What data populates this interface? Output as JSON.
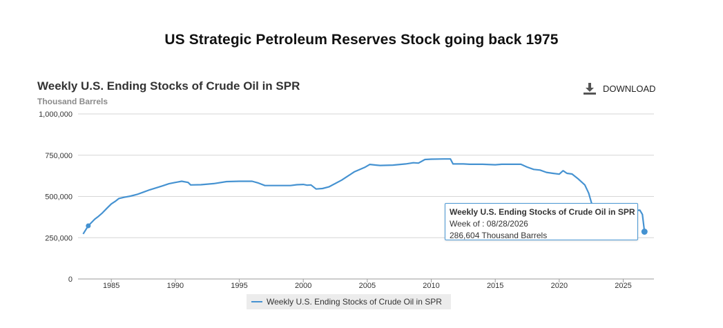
{
  "page": {
    "heading": "US Strategic Petroleum Reserves Stock going back 1975",
    "download_label": "DOWNLOAD"
  },
  "colors": {
    "series": "#4592d1",
    "grid": "#d6d6d6",
    "axis": "#999999",
    "tooltip_border": "#4a97d3"
  },
  "icons": {
    "download": "download-icon"
  },
  "tooltip": {
    "title": "Weekly U.S. Ending Stocks of Crude Oil in SPR",
    "week_line": "Week of : 08/28/2026",
    "value_line": "286,604 Thousand Barrels"
  },
  "chart_data": {
    "type": "line",
    "title": "Weekly U.S. Ending Stocks of Crude Oil in SPR",
    "subtitle": "Thousand Barrels",
    "xlabel": "",
    "ylabel": "",
    "xlim": [
      1982.4,
      2027.4
    ],
    "ylim": [
      0,
      1000000
    ],
    "x_ticks": [
      1985,
      1990,
      1995,
      2000,
      2005,
      2010,
      2015,
      2020,
      2025
    ],
    "y_ticks": [
      0,
      250000,
      500000,
      750000,
      1000000
    ],
    "y_tick_labels": [
      "0",
      "250,000",
      "500,000",
      "750,000",
      "1,000,000"
    ],
    "grid": true,
    "legend": "bottom-center",
    "series": [
      {
        "name": "Weekly U.S. Ending Stocks of Crude Oil in SPR",
        "x": [
          1982.8,
          1983.2,
          1983.7,
          1984.0,
          1984.3,
          1984.7,
          1985.0,
          1985.3,
          1985.6,
          1986.0,
          1986.5,
          1987.0,
          1987.5,
          1988.0,
          1988.5,
          1989.0,
          1989.5,
          1990.0,
          1990.5,
          1991.0,
          1991.2,
          1992.0,
          1993.0,
          1994.0,
          1995.0,
          1996.0,
          1996.5,
          1997.0,
          1998.0,
          1999.0,
          1999.5,
          2000.0,
          2000.3,
          2000.6,
          2001.0,
          2001.5,
          2002.0,
          2003.0,
          2004.0,
          2004.8,
          2005.2,
          2005.7,
          2006.0,
          2007.0,
          2008.0,
          2008.6,
          2009.0,
          2009.5,
          2010.0,
          2011.0,
          2011.5,
          2011.7,
          2012.5,
          2013.0,
          2014.0,
          2015.0,
          2015.5,
          2016.0,
          2017.0,
          2017.5,
          2018.0,
          2018.5,
          2019.0,
          2019.5,
          2020.0,
          2020.3,
          2020.6,
          2021.0,
          2021.5,
          2022.0,
          2022.3,
          2022.6,
          2022.9,
          2023.2,
          2023.5,
          2024.0,
          2024.5,
          2025.0,
          2025.5,
          2026.0,
          2026.3,
          2026.5,
          2026.66
        ],
        "values": [
          273000,
          322000,
          362000,
          380000,
          400000,
          432000,
          455000,
          470000,
          488000,
          495000,
          502000,
          512000,
          526000,
          540000,
          552000,
          564000,
          577000,
          585000,
          592000,
          585000,
          570000,
          571000,
          578000,
          590000,
          592000,
          592000,
          581000,
          566000,
          566000,
          566000,
          571000,
          573000,
          568000,
          570000,
          545000,
          548000,
          558000,
          599000,
          650000,
          676000,
          694000,
          690000,
          688000,
          690000,
          697000,
          704000,
          702000,
          724000,
          726000,
          727000,
          727000,
          697000,
          697000,
          695000,
          695000,
          692000,
          695000,
          695000,
          695000,
          678000,
          664000,
          660000,
          646000,
          640000,
          635000,
          656000,
          640000,
          636000,
          605000,
          570000,
          520000,
          440000,
          400000,
          360000,
          350000,
          362000,
          370000,
          385000,
          402000,
          415000,
          417000,
          391000,
          286604
        ]
      }
    ],
    "markers": [
      {
        "x": 1983.2,
        "y": 322000
      },
      {
        "x": 2026.66,
        "y": 286604
      }
    ]
  }
}
